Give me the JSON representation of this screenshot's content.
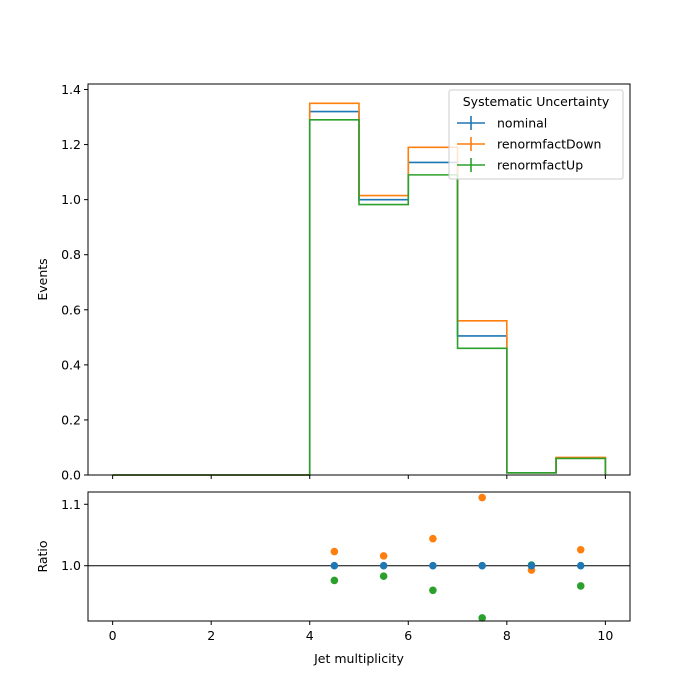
{
  "chart_data": [
    {
      "type": "step",
      "panel": "main",
      "ylabel": "Events",
      "xlim": [
        -0.5,
        10.5
      ],
      "ylim": [
        0,
        1.42
      ],
      "yticks": [
        "0.0",
        "0.2",
        "0.4",
        "0.6",
        "0.8",
        "1.0",
        "1.2",
        "1.4"
      ],
      "ytick_values": [
        0,
        0.2,
        0.4,
        0.6,
        0.8,
        1.0,
        1.2,
        1.4
      ],
      "bin_edges": [
        0,
        1,
        2,
        3,
        4,
        5,
        6,
        7,
        8,
        9,
        10
      ],
      "legend": {
        "title": "Systematic Uncertainty",
        "placement": "top-right"
      },
      "series": [
        {
          "name": "nominal",
          "color": "#1f77b4",
          "values": [
            0,
            0,
            0,
            0,
            1.32,
            1.0,
            1.135,
            0.505,
            0.008,
            0.062
          ]
        },
        {
          "name": "renormfactDown",
          "color": "#ff7f0e",
          "values": [
            0,
            0,
            0,
            0,
            1.35,
            1.015,
            1.19,
            0.56,
            0.008,
            0.064
          ]
        },
        {
          "name": "renormfactUp",
          "color": "#2ca02c",
          "values": [
            0,
            0,
            0,
            0,
            1.29,
            0.982,
            1.09,
            0.46,
            0.008,
            0.06
          ]
        }
      ]
    },
    {
      "type": "scatter",
      "panel": "ratio",
      "xlabel": "Jet multiplicity",
      "ylabel": "Ratio",
      "xlim": [
        -0.5,
        10.5
      ],
      "ylim": [
        0.91,
        1.12
      ],
      "xticks": [
        "0",
        "2",
        "4",
        "6",
        "8",
        "10"
      ],
      "xtick_values": [
        0,
        2,
        4,
        6,
        8,
        10
      ],
      "yticks": [
        "1.0",
        "1.1"
      ],
      "ytick_values": [
        1.0,
        1.1
      ],
      "reference_line": 1.0,
      "x": [
        4.5,
        5.5,
        6.5,
        7.5,
        8.5,
        9.5
      ],
      "series": [
        {
          "name": "nominal",
          "color": "#1f77b4",
          "values": [
            1.0,
            1.0,
            1.0,
            1.0,
            1.0,
            1.0
          ]
        },
        {
          "name": "renormfactDown",
          "color": "#ff7f0e",
          "values": [
            1.023,
            1.016,
            1.044,
            1.111,
            0.993,
            1.026
          ]
        },
        {
          "name": "renormfactUp",
          "color": "#2ca02c",
          "values": [
            0.976,
            0.983,
            0.96,
            0.915,
            1.001,
            0.967
          ]
        }
      ]
    }
  ]
}
